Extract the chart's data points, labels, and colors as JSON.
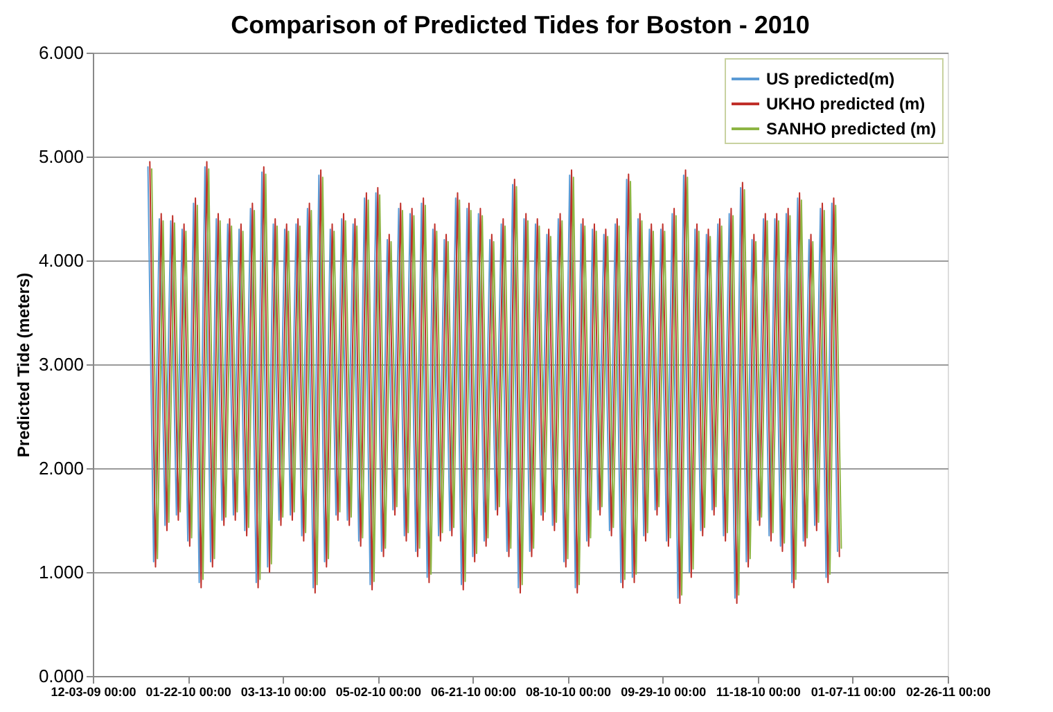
{
  "chart_data": {
    "type": "line",
    "title": "Comparison of Predicted Tides for Boston - 2010",
    "ylabel": "Predicted Tide (meters)",
    "x": [
      "2010-01-01",
      "2010-01-04",
      "2010-01-07",
      "2010-01-10",
      "2010-01-13",
      "2010-01-16",
      "2010-01-19",
      "2010-01-22",
      "2010-01-25",
      "2010-01-28",
      "2010-01-31",
      "2010-02-03",
      "2010-02-06",
      "2010-02-09",
      "2010-02-12",
      "2010-02-15",
      "2010-02-18",
      "2010-02-21",
      "2010-02-24",
      "2010-02-27",
      "2010-03-02",
      "2010-03-05",
      "2010-03-08",
      "2010-03-11",
      "2010-03-14",
      "2010-03-17",
      "2010-03-20",
      "2010-03-23",
      "2010-03-26",
      "2010-03-29",
      "2010-04-01",
      "2010-04-04",
      "2010-04-07",
      "2010-04-10",
      "2010-04-13",
      "2010-04-16",
      "2010-04-19",
      "2010-04-22",
      "2010-04-25",
      "2010-04-28",
      "2010-05-01",
      "2010-05-04",
      "2010-05-07",
      "2010-05-10",
      "2010-05-13",
      "2010-05-16",
      "2010-05-19",
      "2010-05-22",
      "2010-05-25",
      "2010-05-28",
      "2010-05-31",
      "2010-06-03",
      "2010-06-06",
      "2010-06-09",
      "2010-06-12",
      "2010-06-15",
      "2010-06-18",
      "2010-06-21",
      "2010-06-24",
      "2010-06-27",
      "2010-06-30",
      "2010-07-03",
      "2010-07-06",
      "2010-07-09",
      "2010-07-12",
      "2010-07-15",
      "2010-07-18",
      "2010-07-21",
      "2010-07-24",
      "2010-07-27",
      "2010-07-30",
      "2010-08-02",
      "2010-08-05",
      "2010-08-08",
      "2010-08-11",
      "2010-08-14",
      "2010-08-17",
      "2010-08-20",
      "2010-08-23",
      "2010-08-26",
      "2010-08-29",
      "2010-09-01",
      "2010-09-04",
      "2010-09-07",
      "2010-09-10",
      "2010-09-13",
      "2010-09-16",
      "2010-09-19",
      "2010-09-22",
      "2010-09-25",
      "2010-09-28",
      "2010-10-01",
      "2010-10-04",
      "2010-10-07",
      "2010-10-10",
      "2010-10-13",
      "2010-10-16",
      "2010-10-19",
      "2010-10-22",
      "2010-10-25",
      "2010-10-28",
      "2010-10-31",
      "2010-11-03",
      "2010-11-06",
      "2010-11-09",
      "2010-11-12",
      "2010-11-15",
      "2010-11-18",
      "2010-11-21",
      "2010-11-24",
      "2010-11-27",
      "2010-11-30",
      "2010-12-03",
      "2010-12-06",
      "2010-12-09",
      "2010-12-12",
      "2010-12-15",
      "2010-12-18",
      "2010-12-21",
      "2010-12-24",
      "2010-12-27",
      "2010-12-30"
    ],
    "series": [
      {
        "name": "US predicted(m)",
        "color": "#5b9bd5",
        "values": [
          4.9,
          1.1,
          4.4,
          1.45,
          4.38,
          1.55,
          4.3,
          1.3,
          4.55,
          0.9,
          4.9,
          1.1,
          4.4,
          1.5,
          4.35,
          1.55,
          4.3,
          1.4,
          4.5,
          0.9,
          4.85,
          1.05,
          4.35,
          1.5,
          4.3,
          1.55,
          4.35,
          1.35,
          4.5,
          0.85,
          4.82,
          1.1,
          4.3,
          1.55,
          4.4,
          1.5,
          4.35,
          1.3,
          4.6,
          0.88,
          4.65,
          1.2,
          4.2,
          1.6,
          4.5,
          1.35,
          4.45,
          1.2,
          4.55,
          0.95,
          4.3,
          1.35,
          4.2,
          1.4,
          4.6,
          0.88,
          4.5,
          1.15,
          4.45,
          1.3,
          4.2,
          1.6,
          4.35,
          1.2,
          4.73,
          0.85,
          4.4,
          1.2,
          4.35,
          1.55,
          4.25,
          1.45,
          4.4,
          1.1,
          4.82,
          0.85,
          4.35,
          1.3,
          4.3,
          1.6,
          4.25,
          1.4,
          4.35,
          0.9,
          4.78,
          0.95,
          4.4,
          1.35,
          4.3,
          1.6,
          4.3,
          1.3,
          4.45,
          0.75,
          4.82,
          1.0,
          4.3,
          1.4,
          4.25,
          1.6,
          4.35,
          1.35,
          4.45,
          0.75,
          4.7,
          1.1,
          4.2,
          1.5,
          4.4,
          1.35,
          4.4,
          1.25,
          4.45,
          0.9,
          4.6,
          1.3,
          4.2,
          1.45,
          4.5,
          0.95,
          4.55,
          1.2
        ]
      },
      {
        "name": "UKHO predicted (m)",
        "color": "#c0302a",
        "x": [
          "2010-01-02",
          "2010-01-05",
          "2010-01-08",
          "2010-01-11",
          "2010-01-14",
          "2010-01-17",
          "2010-01-20",
          "2010-01-23",
          "2010-01-26",
          "2010-01-29",
          "2010-02-01",
          "2010-02-04",
          "2010-02-07",
          "2010-02-10",
          "2010-02-13",
          "2010-02-16",
          "2010-02-19",
          "2010-02-22",
          "2010-02-25",
          "2010-02-28",
          "2010-03-03",
          "2010-03-06",
          "2010-03-09",
          "2010-03-12",
          "2010-03-15",
          "2010-03-18",
          "2010-03-21",
          "2010-03-24",
          "2010-03-27",
          "2010-03-30",
          "2010-04-02",
          "2010-04-05",
          "2010-04-08",
          "2010-04-11",
          "2010-04-14",
          "2010-04-17",
          "2010-04-20",
          "2010-04-23",
          "2010-04-26",
          "2010-04-29",
          "2010-05-02",
          "2010-05-05",
          "2010-05-08",
          "2010-05-11",
          "2010-05-14",
          "2010-05-17",
          "2010-05-20",
          "2010-05-23",
          "2010-05-26",
          "2010-05-29",
          "2010-06-01",
          "2010-06-04",
          "2010-06-07",
          "2010-06-10",
          "2010-06-13",
          "2010-06-16",
          "2010-06-19",
          "2010-06-22",
          "2010-06-25",
          "2010-06-28",
          "2010-07-01",
          "2010-07-04",
          "2010-07-07",
          "2010-07-10",
          "2010-07-13",
          "2010-07-16",
          "2010-07-19",
          "2010-07-22",
          "2010-07-25",
          "2010-07-28",
          "2010-07-31",
          "2010-08-03",
          "2010-08-06",
          "2010-08-09",
          "2010-08-12",
          "2010-08-15",
          "2010-08-18",
          "2010-08-21",
          "2010-08-24",
          "2010-08-27",
          "2010-08-30",
          "2010-09-02",
          "2010-09-05",
          "2010-09-08",
          "2010-09-11",
          "2010-09-14",
          "2010-09-17",
          "2010-09-20",
          "2010-09-23",
          "2010-09-26",
          "2010-09-29",
          "2010-10-02",
          "2010-10-05",
          "2010-10-08",
          "2010-10-11",
          "2010-10-14",
          "2010-10-17",
          "2010-10-20",
          "2010-10-23",
          "2010-10-26",
          "2010-10-29",
          "2010-11-01",
          "2010-11-04",
          "2010-11-07",
          "2010-11-10",
          "2010-11-13",
          "2010-11-16",
          "2010-11-19",
          "2010-11-22",
          "2010-11-25",
          "2010-11-28",
          "2010-12-01",
          "2010-12-04",
          "2010-12-07",
          "2010-12-10",
          "2010-12-13",
          "2010-12-16",
          "2010-12-19",
          "2010-12-22",
          "2010-12-25",
          "2010-12-28",
          "2010-12-31"
        ],
        "values": [
          4.95,
          1.05,
          4.45,
          1.4,
          4.43,
          1.5,
          4.35,
          1.25,
          4.6,
          0.85,
          4.95,
          1.05,
          4.45,
          1.45,
          4.4,
          1.5,
          4.35,
          1.35,
          4.55,
          0.85,
          4.9,
          1.0,
          4.4,
          1.45,
          4.35,
          1.5,
          4.4,
          1.3,
          4.55,
          0.8,
          4.87,
          1.05,
          4.35,
          1.5,
          4.45,
          1.45,
          4.4,
          1.25,
          4.65,
          0.83,
          4.7,
          1.15,
          4.25,
          1.55,
          4.55,
          1.3,
          4.5,
          1.15,
          4.6,
          0.9,
          4.35,
          1.3,
          4.25,
          1.35,
          4.65,
          0.83,
          4.55,
          1.1,
          4.5,
          1.25,
          4.25,
          1.55,
          4.4,
          1.15,
          4.78,
          0.8,
          4.45,
          1.15,
          4.4,
          1.5,
          4.3,
          1.4,
          4.45,
          1.05,
          4.87,
          0.8,
          4.4,
          1.25,
          4.35,
          1.55,
          4.3,
          1.35,
          4.4,
          0.85,
          4.83,
          0.9,
          4.45,
          1.3,
          4.35,
          1.55,
          4.35,
          1.25,
          4.5,
          0.7,
          4.87,
          0.95,
          4.35,
          1.35,
          4.3,
          1.55,
          4.4,
          1.3,
          4.5,
          0.7,
          4.75,
          1.05,
          4.25,
          1.45,
          4.45,
          1.3,
          4.45,
          1.2,
          4.5,
          0.85,
          4.65,
          1.25,
          4.25,
          1.4,
          4.55,
          0.9,
          4.6,
          1.15
        ]
      },
      {
        "name": "SANHO predicted (m)",
        "color": "#8db543",
        "x": [
          "2010-01-03",
          "2010-01-06",
          "2010-01-09",
          "2010-01-12",
          "2010-01-15",
          "2010-01-18",
          "2010-01-21",
          "2010-01-24",
          "2010-01-27",
          "2010-01-30",
          "2010-02-02",
          "2010-02-05",
          "2010-02-08",
          "2010-02-11",
          "2010-02-14",
          "2010-02-17",
          "2010-02-20",
          "2010-02-23",
          "2010-02-26",
          "2010-03-01",
          "2010-03-04",
          "2010-03-07",
          "2010-03-10",
          "2010-03-13",
          "2010-03-16",
          "2010-03-19",
          "2010-03-22",
          "2010-03-25",
          "2010-03-28",
          "2010-03-31",
          "2010-04-03",
          "2010-04-06",
          "2010-04-09",
          "2010-04-12",
          "2010-04-15",
          "2010-04-18",
          "2010-04-21",
          "2010-04-24",
          "2010-04-27",
          "2010-04-30",
          "2010-05-03",
          "2010-05-06",
          "2010-05-09",
          "2010-05-12",
          "2010-05-15",
          "2010-05-18",
          "2010-05-21",
          "2010-05-24",
          "2010-05-27",
          "2010-05-30",
          "2010-06-02",
          "2010-06-05",
          "2010-06-08",
          "2010-06-11",
          "2010-06-14",
          "2010-06-17",
          "2010-06-20",
          "2010-06-23",
          "2010-06-26",
          "2010-06-29",
          "2010-07-02",
          "2010-07-05",
          "2010-07-08",
          "2010-07-11",
          "2010-07-14",
          "2010-07-17",
          "2010-07-20",
          "2010-07-23",
          "2010-07-26",
          "2010-07-29",
          "2010-08-01",
          "2010-08-04",
          "2010-08-07",
          "2010-08-10",
          "2010-08-13",
          "2010-08-16",
          "2010-08-19",
          "2010-08-22",
          "2010-08-25",
          "2010-08-28",
          "2010-08-31",
          "2010-09-03",
          "2010-09-06",
          "2010-09-09",
          "2010-09-12",
          "2010-09-15",
          "2010-09-18",
          "2010-09-21",
          "2010-09-24",
          "2010-09-27",
          "2010-09-30",
          "2010-10-03",
          "2010-10-06",
          "2010-10-09",
          "2010-10-12",
          "2010-10-15",
          "2010-10-18",
          "2010-10-21",
          "2010-10-24",
          "2010-10-27",
          "2010-10-30",
          "2010-11-02",
          "2010-11-05",
          "2010-11-08",
          "2010-11-11",
          "2010-11-14",
          "2010-11-17",
          "2010-11-20",
          "2010-11-23",
          "2010-11-26",
          "2010-11-29",
          "2010-12-02",
          "2010-12-05",
          "2010-12-08",
          "2010-12-11",
          "2010-12-14",
          "2010-12-17",
          "2010-12-20",
          "2010-12-23",
          "2010-12-26",
          "2010-12-29",
          "2011-01-01"
        ],
        "values": [
          4.88,
          1.13,
          4.38,
          1.48,
          4.36,
          1.58,
          4.28,
          1.33,
          4.53,
          0.93,
          4.88,
          1.13,
          4.38,
          1.53,
          4.33,
          1.58,
          4.28,
          1.43,
          4.48,
          0.93,
          4.83,
          1.08,
          4.33,
          1.53,
          4.28,
          1.58,
          4.33,
          1.38,
          4.48,
          0.88,
          4.8,
          1.13,
          4.28,
          1.58,
          4.38,
          1.53,
          4.33,
          1.33,
          4.58,
          0.91,
          4.63,
          1.23,
          4.18,
          1.63,
          4.48,
          1.38,
          4.43,
          1.23,
          4.53,
          0.98,
          4.28,
          1.38,
          4.18,
          1.43,
          4.58,
          0.91,
          4.48,
          1.18,
          4.43,
          1.33,
          4.18,
          1.63,
          4.33,
          1.23,
          4.71,
          0.88,
          4.38,
          1.23,
          4.33,
          1.58,
          4.23,
          1.48,
          4.38,
          1.13,
          4.8,
          0.88,
          4.33,
          1.33,
          4.28,
          1.63,
          4.23,
          1.43,
          4.33,
          0.93,
          4.76,
          0.98,
          4.38,
          1.38,
          4.28,
          1.63,
          4.28,
          1.33,
          4.43,
          0.78,
          4.8,
          1.03,
          4.28,
          1.43,
          4.23,
          1.63,
          4.33,
          1.38,
          4.43,
          0.78,
          4.68,
          1.13,
          4.18,
          1.53,
          4.38,
          1.38,
          4.38,
          1.28,
          4.43,
          0.93,
          4.58,
          1.33,
          4.18,
          1.48,
          4.48,
          0.98,
          4.53,
          1.23
        ]
      }
    ],
    "xlim": [
      "2009-12-03",
      "2011-02-26"
    ],
    "xticks": [
      {
        "value": "2009-12-03",
        "label": "12-03-09 00:00"
      },
      {
        "value": "2010-01-22",
        "label": "01-22-10 00:00"
      },
      {
        "value": "2010-03-13",
        "label": "03-13-10 00:00"
      },
      {
        "value": "2010-05-02",
        "label": "05-02-10 00:00"
      },
      {
        "value": "2010-06-21",
        "label": "06-21-10 00:00"
      },
      {
        "value": "2010-08-10",
        "label": "08-10-10 00:00"
      },
      {
        "value": "2010-09-29",
        "label": "09-29-10 00:00"
      },
      {
        "value": "2010-11-18",
        "label": "11-18-10 00:00"
      },
      {
        "value": "2011-01-07",
        "label": "01-07-11 00:00"
      },
      {
        "value": "2011-02-26",
        "label": "02-26-11 00:00"
      }
    ],
    "ylim": [
      0,
      6
    ],
    "yticks": [
      {
        "value": 0,
        "label": "0.000"
      },
      {
        "value": 1,
        "label": "1.000"
      },
      {
        "value": 2,
        "label": "2.000"
      },
      {
        "value": 3,
        "label": "3.000"
      },
      {
        "value": 4,
        "label": "4.000"
      },
      {
        "value": 5,
        "label": "5.000"
      },
      {
        "value": 6,
        "label": "6.000"
      }
    ],
    "grid": "y",
    "legend": "top right",
    "marker": "none",
    "line_style": "solid"
  }
}
